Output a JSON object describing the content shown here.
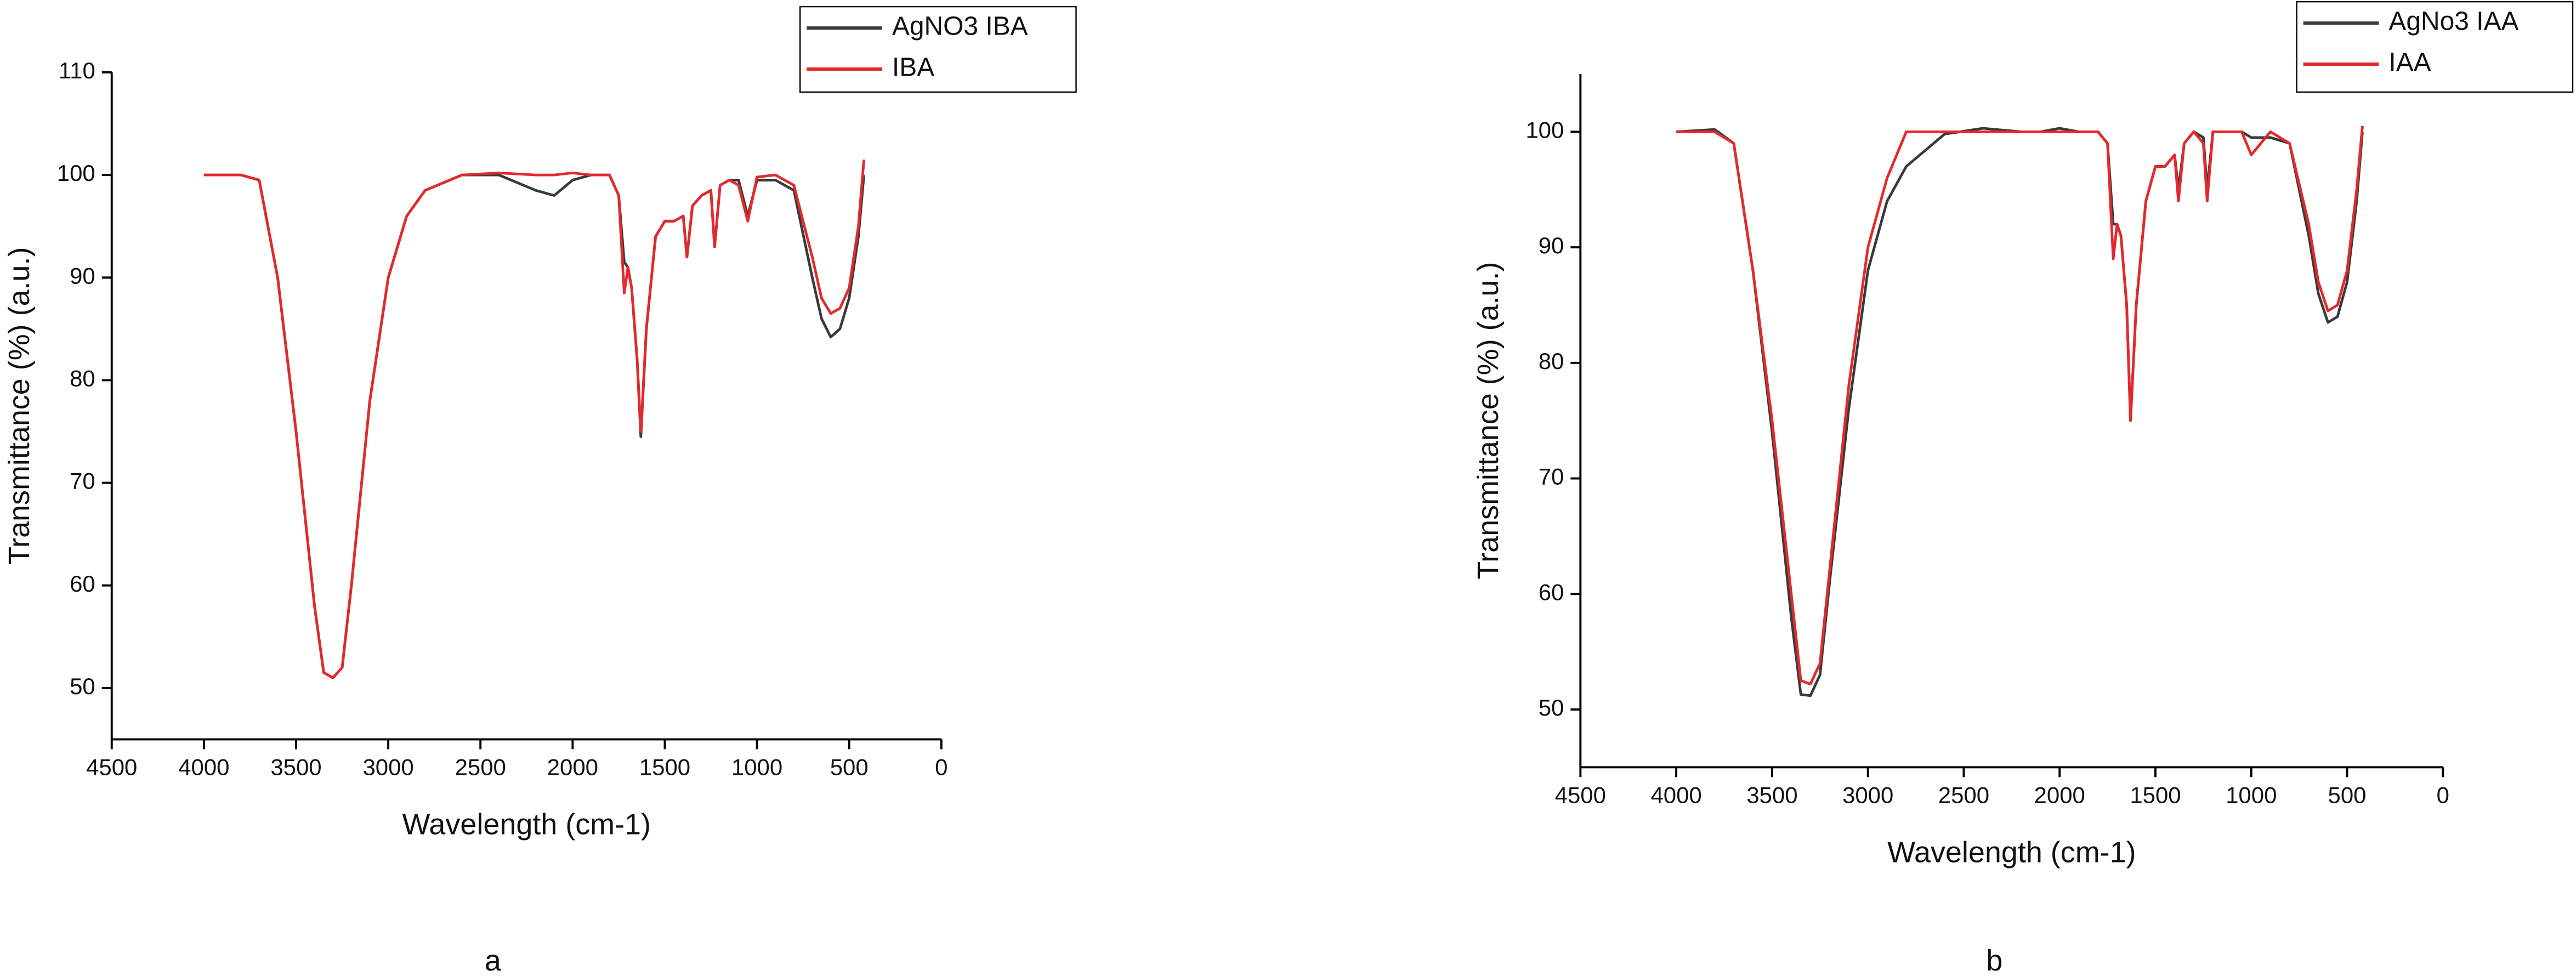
{
  "chart_data": [
    {
      "type": "line",
      "label": "a",
      "x_label": "Wavelength (cm-1)",
      "y_label": "Transmittance (%) (a.u.)",
      "xlim": [
        4500,
        0
      ],
      "xticks": [
        4500,
        4000,
        3500,
        3000,
        2500,
        2000,
        1500,
        1000,
        500,
        0
      ],
      "ylim": [
        45,
        110
      ],
      "yticks": [
        50,
        60,
        70,
        80,
        90,
        100,
        110
      ],
      "legend": "top-right",
      "x": [
        4000,
        3800,
        3700,
        3600,
        3500,
        3400,
        3350,
        3300,
        3250,
        3200,
        3100,
        3000,
        2900,
        2800,
        2600,
        2400,
        2200,
        2100,
        2000,
        1900,
        1800,
        1750,
        1720,
        1700,
        1680,
        1650,
        1630,
        1600,
        1550,
        1500,
        1450,
        1400,
        1380,
        1350,
        1300,
        1250,
        1230,
        1200,
        1150,
        1100,
        1050,
        1000,
        900,
        800,
        700,
        650,
        600,
        550,
        500,
        450,
        420
      ],
      "series": [
        {
          "name": "AgNO3 IBA",
          "color": "#3a3a3a",
          "values": [
            100,
            100,
            99.5,
            90,
            75,
            58,
            51.5,
            51,
            52,
            60,
            78,
            90,
            96,
            98.5,
            100,
            100,
            98.5,
            98,
            99.5,
            100,
            100,
            98,
            91.5,
            91,
            89,
            82,
            74.5,
            85,
            94,
            95.5,
            95.5,
            96,
            92,
            97,
            98,
            98.5,
            93,
            99,
            99.5,
            99.5,
            96,
            99.5,
            99.5,
            98.5,
            90,
            86,
            84.2,
            85,
            88,
            94,
            100
          ]
        },
        {
          "name": "IBA",
          "color": "#e3292b",
          "values": [
            100,
            100,
            99.5,
            90,
            75,
            58,
            51.5,
            51,
            52,
            60,
            78,
            90,
            96,
            98.5,
            100,
            100.2,
            100,
            100,
            100.2,
            100,
            100,
            98,
            88.5,
            91,
            89,
            82,
            75,
            85,
            94,
            95.5,
            95.5,
            96,
            92,
            97,
            98,
            98.5,
            93,
            99,
            99.5,
            99,
            95.5,
            99.8,
            100,
            99,
            92,
            88,
            86.5,
            87,
            89,
            95,
            101.5
          ]
        }
      ]
    },
    {
      "type": "line",
      "label": "b",
      "x_label": "Wavelength (cm-1)",
      "y_label": "Transmittance (%) (a.u.)",
      "xlim": [
        4500,
        0
      ],
      "xticks": [
        4500,
        4000,
        3500,
        3000,
        2500,
        2000,
        1500,
        1000,
        500,
        0
      ],
      "ylim": [
        45,
        105
      ],
      "yticks": [
        50,
        60,
        70,
        80,
        90,
        100
      ],
      "legend": "top-right",
      "x": [
        4000,
        3800,
        3700,
        3600,
        3500,
        3400,
        3350,
        3300,
        3250,
        3200,
        3100,
        3000,
        2900,
        2800,
        2600,
        2400,
        2200,
        2100,
        2000,
        1900,
        1800,
        1750,
        1720,
        1700,
        1680,
        1650,
        1630,
        1600,
        1550,
        1500,
        1450,
        1400,
        1380,
        1350,
        1300,
        1250,
        1230,
        1200,
        1150,
        1100,
        1050,
        1000,
        900,
        800,
        700,
        650,
        600,
        550,
        500,
        450,
        420
      ],
      "series": [
        {
          "name": "AgNo3 IAA",
          "color": "#3a3a3a",
          "values": [
            100,
            100.2,
            99,
            88,
            74,
            58,
            51.3,
            51.2,
            53,
            61,
            76,
            88,
            94,
            97,
            99.8,
            100.3,
            100,
            100,
            100.3,
            100,
            100,
            99,
            92,
            92,
            91,
            85,
            75,
            85,
            94,
            97,
            97,
            98,
            95,
            99,
            100,
            99.5,
            95,
            100,
            100,
            100,
            100,
            99.5,
            99.5,
            99,
            91,
            86,
            83.5,
            84,
            87,
            94,
            100
          ]
        },
        {
          "name": "IAA",
          "color": "#e3292b",
          "values": [
            100,
            100,
            99,
            88,
            75,
            60,
            52.5,
            52.2,
            54,
            62,
            78,
            90,
            96,
            100,
            100,
            100,
            100,
            100,
            100,
            100,
            100,
            99,
            89,
            92,
            91,
            85,
            75,
            85,
            94,
            97,
            97,
            98,
            94,
            99,
            100,
            99,
            94,
            100,
            100,
            100,
            100,
            98,
            100,
            99,
            92,
            87,
            84.5,
            85,
            88,
            95,
            100.5
          ]
        }
      ]
    }
  ]
}
